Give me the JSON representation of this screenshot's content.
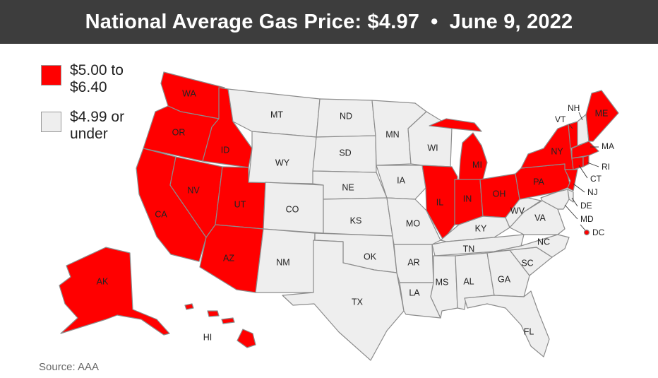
{
  "title": {
    "left": "National Average Gas Price: $4.97",
    "separator": "•",
    "right": "June 9, 2022"
  },
  "legend": [
    {
      "label": "$5.00 to $6.40",
      "color": "#ff0000"
    },
    {
      "label": "$4.99 or under",
      "color": "#eeeeee"
    }
  ],
  "colors": {
    "high": "#ff0000",
    "low": "#eeeeee",
    "border": "#8c8c8c"
  },
  "states": {
    "WA": "high",
    "OR": "high",
    "CA": "high",
    "NV": "high",
    "ID": "high",
    "UT": "high",
    "AZ": "high",
    "MT": "low",
    "WY": "low",
    "CO": "low",
    "NM": "low",
    "ND": "low",
    "SD": "low",
    "NE": "low",
    "KS": "low",
    "OK": "low",
    "TX": "low",
    "MN": "low",
    "IA": "low",
    "MO": "low",
    "AR": "low",
    "LA": "low",
    "WI": "low",
    "IL": "high",
    "MI": "high",
    "IN": "high",
    "OH": "high",
    "KY": "low",
    "TN": "low",
    "MS": "low",
    "AL": "low",
    "GA": "low",
    "FL": "low",
    "SC": "low",
    "NC": "low",
    "VA": "low",
    "WV": "low",
    "PA": "high",
    "NY": "high",
    "NJ": "high",
    "DE": "low",
    "MD": "low",
    "DC": "high",
    "CT": "high",
    "RI": "high",
    "MA": "high",
    "VT": "high",
    "NH": "low",
    "ME": "high",
    "AK": "high",
    "HI": "high"
  },
  "source": "Source: AAA"
}
